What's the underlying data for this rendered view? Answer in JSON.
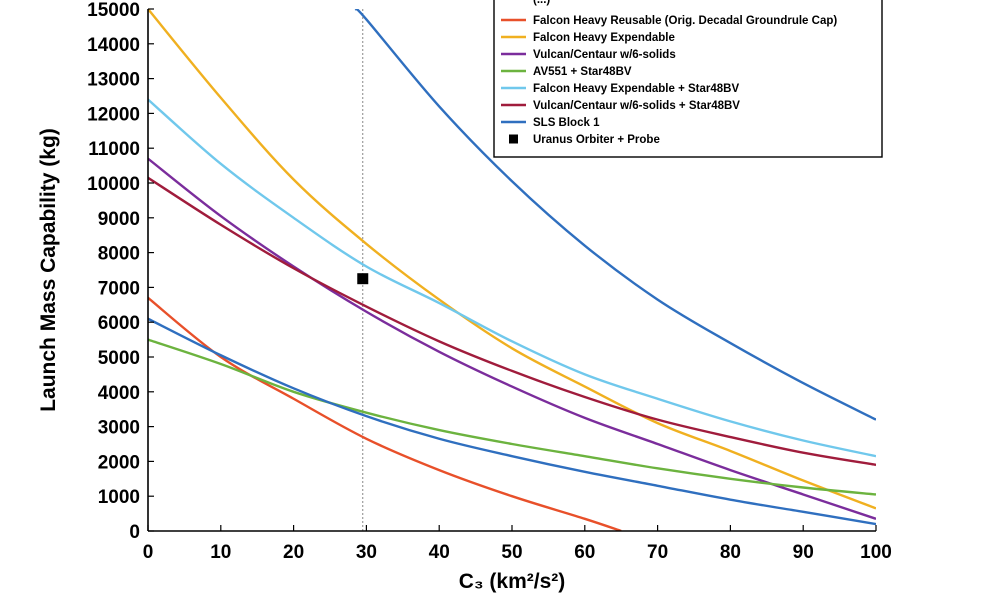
{
  "chart_data": {
    "type": "line",
    "title": "",
    "xlabel": "C₃ (km²/s²)",
    "ylabel": "Launch Mass Capability (kg)",
    "xlim": [
      0,
      100
    ],
    "ylim": [
      0,
      15000
    ],
    "x_ticks": [
      "0",
      "10",
      "20",
      "30",
      "40",
      "50",
      "60",
      "70",
      "80",
      "90",
      "100"
    ],
    "y_ticks": [
      "0",
      "1000",
      "2000",
      "3000",
      "4000",
      "5000",
      "6000",
      "7000",
      "8000",
      "9000",
      "10000",
      "11000",
      "12000",
      "13000",
      "14000",
      "15000"
    ],
    "grid": false,
    "legend_position": "top-right",
    "legend_partial_entry": "(...)",
    "reference_line": {
      "x": 29.5
    },
    "series": [
      {
        "name": "Falcon Heavy Reusable (Orig. Decadal Groundrule Cap)",
        "color": "#e8502a",
        "x": [
          0,
          10,
          20,
          30,
          40,
          50,
          60,
          65
        ],
        "y": [
          6700,
          5000,
          3800,
          2650,
          1750,
          1000,
          350,
          0
        ]
      },
      {
        "name": "Falcon Heavy Expendable",
        "color": "#f0b020",
        "x": [
          0,
          10,
          20,
          30,
          40,
          50,
          60,
          70,
          80,
          90,
          100
        ],
        "y": [
          15000,
          12450,
          10100,
          8250,
          6650,
          5250,
          4150,
          3100,
          2300,
          1450,
          650
        ]
      },
      {
        "name": "Vulcan/Centaur w/6-solids",
        "color": "#7b2d9c",
        "x": [
          0,
          10,
          20,
          30,
          40,
          50,
          60,
          70,
          80,
          90,
          100
        ],
        "y": [
          10700,
          9050,
          7600,
          6300,
          5150,
          4150,
          3250,
          2500,
          1750,
          1050,
          350
        ]
      },
      {
        "name": "AV551 + Star48BV",
        "color": "#6cb33f",
        "x": [
          0,
          10,
          20,
          30,
          40,
          50,
          60,
          70,
          80,
          90,
          100
        ],
        "y": [
          5500,
          4800,
          4000,
          3400,
          2900,
          2500,
          2150,
          1800,
          1500,
          1250,
          1050
        ]
      },
      {
        "name": "Falcon Heavy Expendable + Star48BV",
        "color": "#70c8ec",
        "x": [
          0,
          10,
          20,
          30,
          40,
          50,
          60,
          70,
          80,
          90,
          100
        ],
        "y": [
          12400,
          10550,
          9000,
          7600,
          6550,
          5450,
          4500,
          3800,
          3150,
          2600,
          2150
        ]
      },
      {
        "name": "Vulcan/Centaur w/6-solids + Star48BV",
        "color": "#a01c3c",
        "x": [
          0,
          10,
          20,
          30,
          40,
          50,
          60,
          70,
          80,
          90,
          100
        ],
        "y": [
          10150,
          8800,
          7550,
          6450,
          5450,
          4600,
          3850,
          3200,
          2700,
          2250,
          1900
        ]
      },
      {
        "name": "SLS Block 1",
        "color": "#2f6fbf",
        "x": [
          0,
          10,
          20,
          30,
          40,
          50,
          60,
          70,
          80,
          90,
          100
        ],
        "y": [
          6100,
          5050,
          4100,
          3300,
          2650,
          2150,
          1700,
          1300,
          900,
          550,
          200
        ]
      },
      {
        "name": "",
        "color": "#2f6fbf",
        "x": [
          28.5,
          30,
          40,
          50,
          60,
          70,
          80,
          90,
          100
        ],
        "y": [
          15000,
          14700,
          12200,
          10050,
          8200,
          6650,
          5400,
          4250,
          3200
        ]
      }
    ],
    "points": [
      {
        "name": "Uranus Orbiter + Probe",
        "x": 29.5,
        "y": 7250,
        "color": "#000000",
        "marker": "square"
      }
    ]
  }
}
